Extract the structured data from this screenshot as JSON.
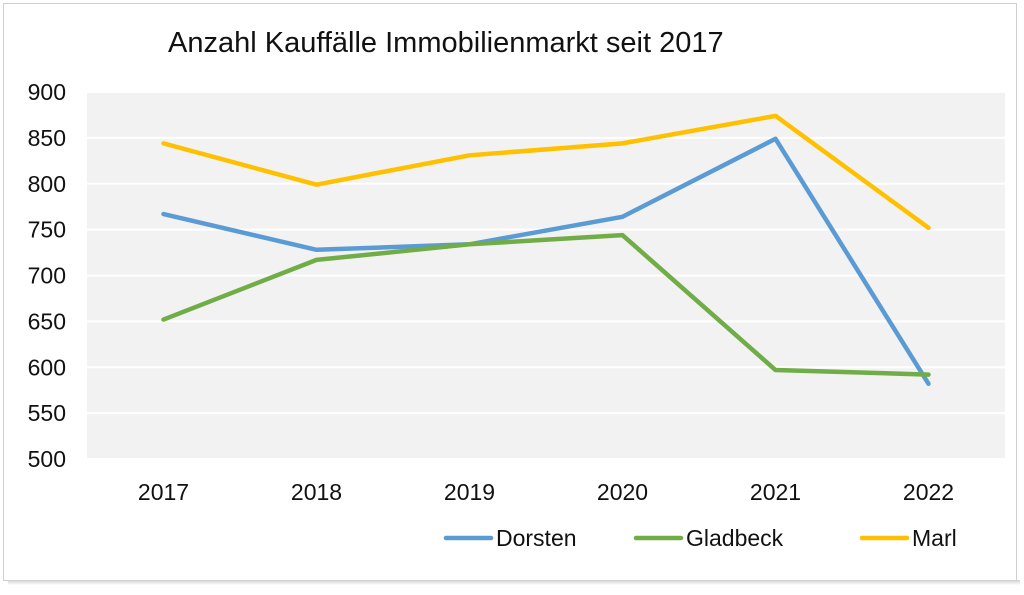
{
  "chart_data": {
    "type": "line",
    "title": "Anzahl Kauffälle Immobilienmarkt seit 2017",
    "xlabel": "",
    "ylabel": "",
    "categories": [
      "2017",
      "2018",
      "2019",
      "2020",
      "2021",
      "2022"
    ],
    "y_ticks": [
      "900",
      "850",
      "800",
      "750",
      "700",
      "650",
      "600",
      "550",
      "500"
    ],
    "ylim": [
      500,
      900
    ],
    "grid": true,
    "legend_position": "bottom-right",
    "series": [
      {
        "name": "Dorsten",
        "color": "#5b9bd5",
        "values": [
          767,
          728,
          734,
          764,
          849,
          582
        ]
      },
      {
        "name": "Gladbeck",
        "color": "#70ad47",
        "values": [
          652,
          717,
          734,
          744,
          597,
          592
        ]
      },
      {
        "name": "Marl",
        "color": "#ffc000",
        "values": [
          844,
          799,
          831,
          844,
          874,
          752
        ]
      }
    ]
  }
}
